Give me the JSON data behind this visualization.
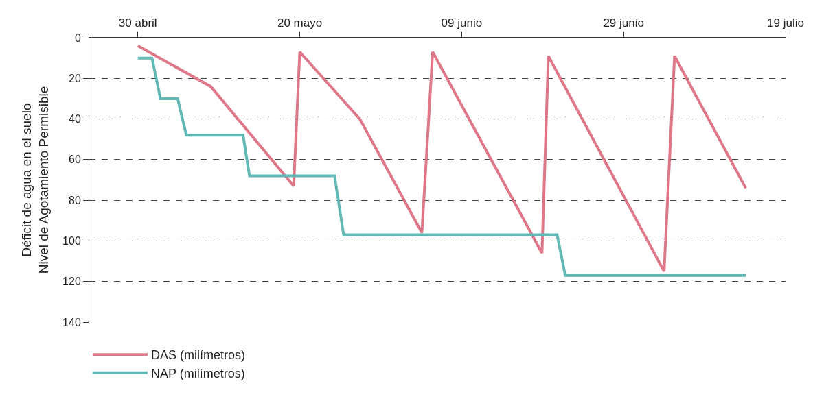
{
  "chart_data": {
    "type": "line",
    "ylabel": "Déficit de agua en el suelo\nNivel de Agotamiento Permisible",
    "series": [
      {
        "name": "DAS (milímetros)",
        "color": "#de7788",
        "x": [
          "--04-30",
          "--05-09",
          "--05-19T06:00",
          "--05-20",
          "--05-27T10:00",
          "--06-04T02:00",
          "--06-05T10:00",
          "--06-18T22:00",
          "--06-19T17:00",
          "--07-04",
          "--07-05T07:00",
          "--07-14T02:00"
        ],
        "values": [
          4,
          24,
          73,
          7,
          40,
          96,
          7,
          106,
          9,
          115,
          9,
          74
        ]
      },
      {
        "name": "NAP (milímetros)",
        "color": "#62b8b5",
        "x": [
          "--04-30",
          "--05-01T18:00",
          "--05-02T19:00",
          "--05-04T22:00",
          "--05-06",
          "--05-13",
          "--05-13T19:00",
          "--05-24T07:00",
          "--05-25T10:00",
          "--06-20T19:00",
          "--06-21T19:00",
          "--07-14T02:00"
        ],
        "values": [
          10,
          10,
          30,
          30,
          48,
          48,
          68,
          68,
          97,
          97,
          117,
          117
        ]
      }
    ],
    "xlim": [
      "--04-24",
      "--07-19"
    ],
    "xticks": [
      {
        "value": "--04-30",
        "label": "30 abril"
      },
      {
        "value": "--05-20",
        "label": "20 mayo"
      },
      {
        "value": "--06-09",
        "label": "09 junio"
      },
      {
        "value": "--06-29",
        "label": "29 junio"
      },
      {
        "value": "--07-19",
        "label": "19 julio"
      }
    ],
    "ylim": [
      140,
      0
    ],
    "yticks": [
      0,
      20,
      40,
      60,
      80,
      100,
      120,
      140
    ],
    "grid": "y",
    "legend": "bottom left",
    "marker": "none",
    "line_style": "solid"
  }
}
